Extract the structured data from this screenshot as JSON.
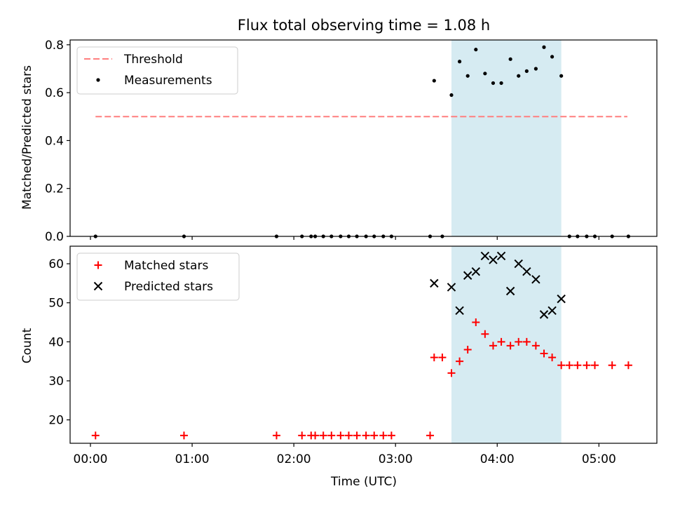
{
  "chart_data": [
    {
      "type": "scatter",
      "title": "Flux total observing time = 1.08 h",
      "xlabel": "",
      "ylabel": "Matched/Predicted stars",
      "ylim": [
        0,
        0.82
      ],
      "yticks": [
        "0.0",
        "0.2",
        "0.4",
        "0.6",
        "0.8"
      ],
      "ytick_values": [
        0,
        0.2,
        0.4,
        0.6,
        0.8
      ],
      "xlim_hours": [
        -0.2,
        5.57
      ],
      "xtick_values_hours": [
        0,
        1,
        2,
        3,
        4,
        5
      ],
      "x_tick_labels_shown": false,
      "shaded_region_hours": [
        3.55,
        4.63
      ],
      "shaded_color": "#add8e6",
      "legend_position": "upper left",
      "threshold": {
        "name": "Threshold",
        "value": 0.5,
        "x_start_hours": 0.05,
        "x_end_hours": 5.28,
        "color": "#ff7f7f",
        "style": "dashed"
      },
      "series": [
        {
          "name": "Measurements",
          "marker": "dot",
          "color": "#000000",
          "x_hours": [
            0.05,
            0.92,
            1.83,
            2.08,
            2.17,
            2.21,
            2.29,
            2.37,
            2.46,
            2.54,
            2.62,
            2.71,
            2.79,
            2.88,
            2.96,
            3.34,
            3.38,
            3.46,
            3.55,
            3.63,
            3.71,
            3.79,
            3.88,
            3.96,
            4.04,
            4.13,
            4.21,
            4.29,
            4.38,
            4.46,
            4.54,
            4.63,
            4.71,
            4.79,
            4.88,
            4.96,
            5.13,
            5.29
          ],
          "y": [
            0,
            0,
            0,
            0,
            0,
            0,
            0,
            0,
            0,
            0,
            0,
            0,
            0,
            0,
            0,
            0,
            0.65,
            0,
            0.59,
            0.73,
            0.67,
            0.78,
            0.68,
            0.64,
            0.64,
            0.74,
            0.67,
            0.69,
            0.7,
            0.79,
            0.75,
            0.67,
            0,
            0,
            0,
            0,
            0,
            0
          ]
        }
      ]
    },
    {
      "type": "scatter",
      "title": "",
      "xlabel": "Time (UTC)",
      "ylabel": "Count",
      "ylim": [
        14,
        64.5
      ],
      "yticks": [
        "20",
        "30",
        "40",
        "50",
        "60"
      ],
      "ytick_values": [
        20,
        30,
        40,
        50,
        60
      ],
      "xlim_hours": [
        -0.2,
        5.57
      ],
      "xtick_values_hours": [
        0,
        1,
        2,
        3,
        4,
        5
      ],
      "xticks": [
        "00:00",
        "01:00",
        "02:00",
        "03:00",
        "04:00",
        "05:00"
      ],
      "shaded_region_hours": [
        3.55,
        4.63
      ],
      "shaded_color": "#add8e6",
      "legend_position": "upper left",
      "series": [
        {
          "name": "Matched stars",
          "marker": "plus",
          "color": "#ff0000",
          "x_hours": [
            0.05,
            0.92,
            1.83,
            2.08,
            2.17,
            2.21,
            2.29,
            2.37,
            2.46,
            2.54,
            2.62,
            2.71,
            2.79,
            2.88,
            2.96,
            3.34,
            3.38,
            3.46,
            3.55,
            3.63,
            3.71,
            3.79,
            3.88,
            3.96,
            4.04,
            4.13,
            4.21,
            4.29,
            4.38,
            4.46,
            4.54,
            4.63,
            4.71,
            4.79,
            4.88,
            4.96,
            5.13,
            5.29
          ],
          "y": [
            16,
            16,
            16,
            16,
            16,
            16,
            16,
            16,
            16,
            16,
            16,
            16,
            16,
            16,
            16,
            16,
            36,
            36,
            32,
            35,
            38,
            45,
            42,
            39,
            40,
            39,
            40,
            40,
            39,
            37,
            36,
            34,
            34,
            34,
            34,
            34,
            34,
            34
          ]
        },
        {
          "name": "Predicted stars",
          "marker": "x",
          "color": "#000000",
          "x_hours": [
            3.38,
            3.55,
            3.63,
            3.71,
            3.79,
            3.88,
            3.96,
            4.04,
            4.13,
            4.21,
            4.29,
            4.38,
            4.46,
            4.54,
            4.63
          ],
          "y": [
            55,
            54,
            48,
            57,
            58,
            62,
            61,
            62,
            53,
            60,
            58,
            56,
            47,
            48,
            51
          ]
        }
      ]
    }
  ]
}
